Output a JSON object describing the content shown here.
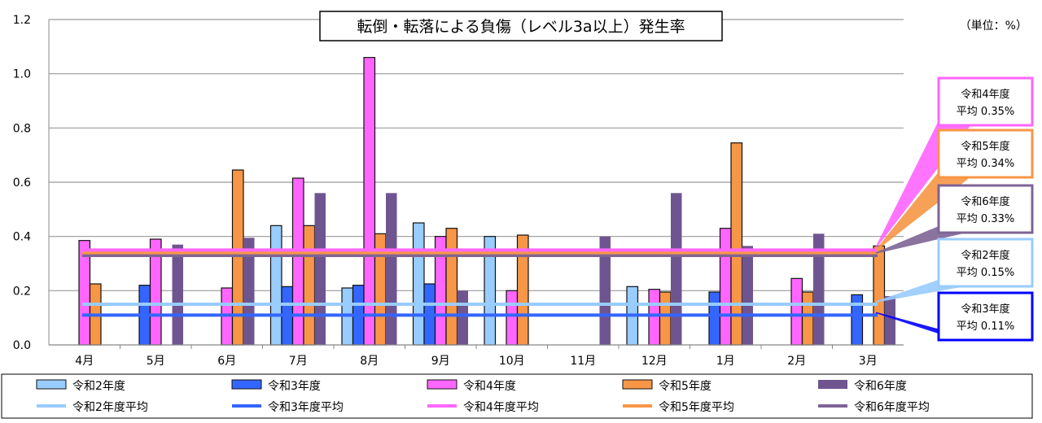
{
  "chart_data": {
    "type": "bar",
    "title": "転倒・転落による負傷（レベル3a以上）発生率",
    "unit_label": "（単位：%）",
    "xlabel": "",
    "ylabel": "",
    "ylim": [
      0,
      1.2
    ],
    "yticks": [
      "0.0",
      "0.2",
      "0.4",
      "0.6",
      "0.8",
      "1.0",
      "1.2"
    ],
    "grid": true,
    "legend_position": "bottom",
    "categories": [
      "4月",
      "5月",
      "6月",
      "7月",
      "8月",
      "9月",
      "10月",
      "11月",
      "12月",
      "1月",
      "2月",
      "3月"
    ],
    "series": [
      {
        "name": "令和2年度",
        "color": "#99CCFF",
        "values": [
          null,
          null,
          null,
          0.44,
          0.21,
          0.45,
          0.4,
          null,
          0.215,
          null,
          null,
          null
        ]
      },
      {
        "name": "令和3年度",
        "color": "#3366FF",
        "values": [
          null,
          0.22,
          null,
          0.215,
          0.22,
          0.225,
          null,
          null,
          null,
          0.195,
          null,
          0.185
        ]
      },
      {
        "name": "令和4年度",
        "color": "#FF66FF",
        "values": [
          0.385,
          0.39,
          0.21,
          0.615,
          1.06,
          0.4,
          0.2,
          null,
          0.205,
          0.43,
          0.245,
          null
        ]
      },
      {
        "name": "令和5年度",
        "color": "#F79646",
        "values": [
          0.225,
          null,
          0.645,
          0.44,
          0.41,
          0.43,
          0.405,
          null,
          0.195,
          0.745,
          0.195,
          0.365
        ]
      },
      {
        "name": "令和6年度",
        "color": "#6F5590",
        "values": [
          null,
          0.37,
          0.395,
          0.56,
          0.56,
          0.2,
          null,
          0.4,
          0.56,
          0.365,
          0.41,
          0.18
        ]
      }
    ],
    "averages": [
      {
        "name": "令和2年度平均",
        "color": "#99CCFF",
        "value": 0.15,
        "callout_line1": "令和2年度",
        "callout_line2": "平均 0.15%",
        "callout_border": "#99CCFF"
      },
      {
        "name": "令和3年度平均",
        "color": "#3366FF",
        "value": 0.11,
        "callout_line1": "令和3年度",
        "callout_line2": "平均 0.11%",
        "callout_border": "#0000FF"
      },
      {
        "name": "令和4年度平均",
        "color": "#FF66FF",
        "value": 0.35,
        "callout_line1": "令和4年度",
        "callout_line2": "平均 0.35%",
        "callout_border": "#FF66FF"
      },
      {
        "name": "令和5年度平均",
        "color": "#F79646",
        "value": 0.34,
        "callout_line1": "令和5年度",
        "callout_line2": "平均 0.34%",
        "callout_border": "#F79646"
      },
      {
        "name": "令和6年度平均",
        "color": "#7F6496",
        "value": 0.33,
        "callout_line1": "令和6年度",
        "callout_line2": "平均 0.33%",
        "callout_border": "#7F6496"
      }
    ]
  }
}
